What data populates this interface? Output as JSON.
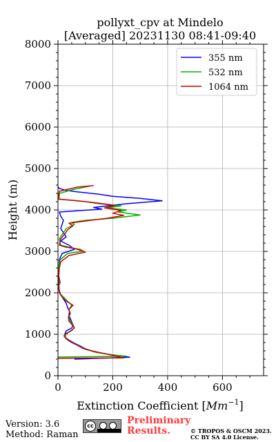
{
  "chart_data": {
    "type": "line",
    "title": "pollyxt_cpv at Mindelo",
    "subtitle": "[Averaged] 20231130 08:41-09:40",
    "xlabel": "Extinction Coefficient [Mm⁻¹]",
    "xlabel_text": "Extinction Coefficient [",
    "xlabel_unit": "Mm",
    "xlabel_exp": "−1",
    "xlabel_close": "]",
    "ylabel": "Height (m)",
    "xlim": [
      0,
      750
    ],
    "ylim": [
      0,
      8000
    ],
    "xticks": [
      0,
      200,
      400,
      600
    ],
    "yticks": [
      0,
      1000,
      2000,
      3000,
      4000,
      5000,
      6000,
      7000,
      8000
    ],
    "grid": true,
    "legend_position": "top-right",
    "series": [
      {
        "name": "355 nm",
        "color": "#0000ff",
        "points": [
          [
            60,
            400
          ],
          [
            262,
            445
          ],
          [
            240,
            465
          ],
          [
            180,
            520
          ],
          [
            130,
            580
          ],
          [
            100,
            650
          ],
          [
            80,
            720
          ],
          [
            55,
            800
          ],
          [
            40,
            860
          ],
          [
            28,
            920
          ],
          [
            25,
            1000
          ],
          [
            30,
            1080
          ],
          [
            50,
            1150
          ],
          [
            55,
            1220
          ],
          [
            50,
            1300
          ],
          [
            45,
            1380
          ],
          [
            40,
            1450
          ],
          [
            42,
            1550
          ],
          [
            35,
            1650
          ],
          [
            30,
            1750
          ],
          [
            20,
            1850
          ],
          [
            10,
            1950
          ],
          [
            5,
            2050
          ],
          [
            3,
            2200
          ],
          [
            2,
            2400
          ],
          [
            3,
            2600
          ],
          [
            5,
            2800
          ],
          [
            15,
            2950
          ],
          [
            60,
            3050
          ],
          [
            40,
            3150
          ],
          [
            10,
            3250
          ],
          [
            30,
            3350
          ],
          [
            20,
            3450
          ],
          [
            10,
            3550
          ],
          [
            15,
            3650
          ],
          [
            20,
            3750
          ],
          [
            10,
            3850
          ],
          [
            5,
            3950
          ],
          [
            160,
            4020
          ],
          [
            130,
            4060
          ],
          [
            250,
            4150
          ],
          [
            380,
            4220
          ],
          [
            300,
            4280
          ],
          [
            200,
            4330
          ],
          [
            150,
            4380
          ],
          [
            80,
            4430
          ],
          [
            30,
            4470
          ],
          [
            5,
            4520
          ],
          [
            0,
            4560
          ]
        ]
      },
      {
        "name": "532 nm",
        "color": "#00b300",
        "points": [
          [
            0,
            450
          ],
          [
            250,
            470
          ],
          [
            200,
            500
          ],
          [
            140,
            560
          ],
          [
            100,
            640
          ],
          [
            75,
            720
          ],
          [
            50,
            800
          ],
          [
            35,
            870
          ],
          [
            25,
            940
          ],
          [
            30,
            1000
          ],
          [
            45,
            1080
          ],
          [
            60,
            1150
          ],
          [
            55,
            1230
          ],
          [
            45,
            1300
          ],
          [
            40,
            1400
          ],
          [
            45,
            1500
          ],
          [
            40,
            1600
          ],
          [
            50,
            1700
          ],
          [
            35,
            1800
          ],
          [
            20,
            1900
          ],
          [
            5,
            2000
          ],
          [
            3,
            2150
          ],
          [
            5,
            2300
          ],
          [
            2,
            2500
          ],
          [
            3,
            2650
          ],
          [
            8,
            2800
          ],
          [
            35,
            2950
          ],
          [
            90,
            3000
          ],
          [
            70,
            3050
          ],
          [
            40,
            3100
          ],
          [
            10,
            3150
          ],
          [
            5,
            3300
          ],
          [
            20,
            3450
          ],
          [
            30,
            3550
          ],
          [
            45,
            3600
          ],
          [
            60,
            3650
          ],
          [
            50,
            3700
          ],
          [
            100,
            3750
          ],
          [
            200,
            3800
          ],
          [
            300,
            3880
          ],
          [
            220,
            3950
          ],
          [
            250,
            4000
          ],
          [
            180,
            4050
          ],
          [
            230,
            4100
          ],
          [
            150,
            4150
          ],
          [
            100,
            4200
          ],
          [
            5,
            4260
          ],
          [
            5,
            4400
          ],
          [
            60,
            4500
          ],
          [
            120,
            4580
          ]
        ]
      },
      {
        "name": "1064 nm",
        "color": "#cc0000",
        "points": [
          [
            0,
            420
          ],
          [
            240,
            430
          ],
          [
            220,
            460
          ],
          [
            180,
            520
          ],
          [
            130,
            590
          ],
          [
            90,
            660
          ],
          [
            70,
            740
          ],
          [
            45,
            820
          ],
          [
            30,
            890
          ],
          [
            22,
            960
          ],
          [
            30,
            1020
          ],
          [
            50,
            1090
          ],
          [
            60,
            1160
          ],
          [
            50,
            1240
          ],
          [
            40,
            1320
          ],
          [
            38,
            1420
          ],
          [
            45,
            1500
          ],
          [
            40,
            1600
          ],
          [
            55,
            1700
          ],
          [
            30,
            1800
          ],
          [
            15,
            1900
          ],
          [
            5,
            2000
          ],
          [
            2,
            2150
          ],
          [
            8,
            2250
          ],
          [
            3,
            2400
          ],
          [
            5,
            2600
          ],
          [
            10,
            2750
          ],
          [
            40,
            2900
          ],
          [
            100,
            2980
          ],
          [
            80,
            3050
          ],
          [
            30,
            3100
          ],
          [
            5,
            3150
          ],
          [
            10,
            3300
          ],
          [
            25,
            3420
          ],
          [
            35,
            3520
          ],
          [
            55,
            3620
          ],
          [
            40,
            3680
          ],
          [
            120,
            3750
          ],
          [
            180,
            3800
          ],
          [
            240,
            3870
          ],
          [
            200,
            3920
          ],
          [
            230,
            3990
          ],
          [
            170,
            4050
          ],
          [
            210,
            4110
          ],
          [
            130,
            4180
          ],
          [
            60,
            4230
          ],
          [
            0,
            4260
          ],
          [
            5,
            4450
          ],
          [
            70,
            4550
          ],
          [
            130,
            4590
          ]
        ]
      }
    ]
  },
  "footer": {
    "version": "Version: 3.6",
    "method": "Method: Raman",
    "cc_icon": "cc-by-sa-icon",
    "cc_text": "cc",
    "preliminary_line1": "Preliminary",
    "preliminary_line2": "Results.",
    "copyright_line1": "© TROPOS & OSCM 2023.",
    "copyright_line2": "CC BY SA 4.0 License."
  }
}
